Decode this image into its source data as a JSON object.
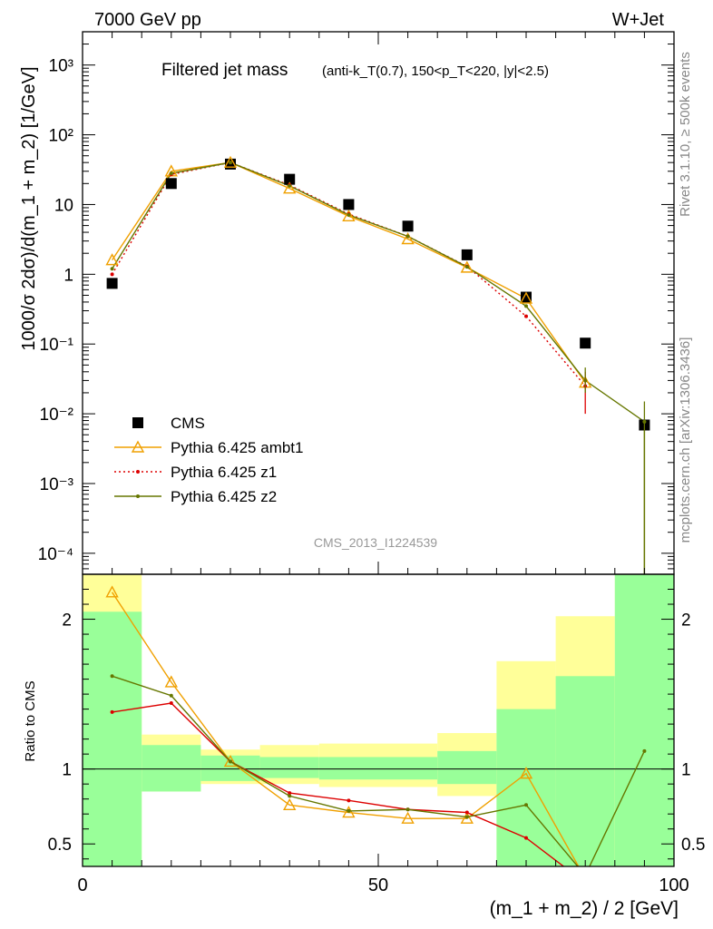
{
  "header": {
    "left": "7000 GeV pp",
    "right": "W+Jet"
  },
  "side_labels": {
    "rivet": "Rivet 3.1.10, ≥ 500k events",
    "mcplots": "mcplots.cern.ch [arXiv:1306.3436]"
  },
  "analysis_id": "CMS_2013_I1224539",
  "chart_data": [
    {
      "type": "line",
      "title": "Filtered jet mass",
      "subtitle": "(anti-k_T(0.7), 150<p_T<220, |y|<2.5)",
      "xlabel": "(m_1 + m_2) / 2 [GeV]",
      "ylabel": "1000/σ 2dσ)/d(m_1 + m_2) [1/GeV]",
      "yscale": "log",
      "xlim": [
        0,
        100
      ],
      "ylim": [
        5e-05,
        3000
      ],
      "y_tick_labels": [
        "10⁻⁴",
        "10⁻³",
        "10⁻²",
        "10⁻¹",
        "1",
        "10",
        "10²",
        "10³"
      ],
      "legend_position": "bottom-left",
      "x": [
        5,
        15,
        25,
        35,
        45,
        55,
        65,
        75,
        85,
        95
      ],
      "series": [
        {
          "name": "CMS",
          "marker": "square",
          "color": "#000000",
          "values": [
            0.74,
            20,
            38,
            23,
            10,
            4.9,
            1.9,
            0.47,
            0.103,
            0.0069
          ]
        },
        {
          "name": "Pythia 6.425 ambt1",
          "marker": "triangle",
          "color": "#f0a000",
          "values": [
            1.6,
            30,
            40,
            17,
            6.8,
            3.2,
            1.25,
            0.45,
            0.028,
            null
          ]
        },
        {
          "name": "Pythia 6.425 z1",
          "marker": "dot",
          "dash": "dotted",
          "color": "#dd0000",
          "values": [
            1.0,
            27,
            40,
            19,
            7.3,
            3.5,
            1.3,
            0.25,
            0.025,
            null
          ]
        },
        {
          "name": "Pythia 6.425 z2",
          "marker": "dot",
          "color": "#667700",
          "values": [
            1.2,
            28,
            40,
            18.5,
            7.1,
            3.5,
            1.28,
            0.35,
            0.03,
            0.0077
          ]
        }
      ]
    },
    {
      "type": "line",
      "ylabel": "Ratio to CMS",
      "xlabel": "(m_1 + m_2) / 2 [GeV]",
      "xlim": [
        0,
        100
      ],
      "ylim": [
        0.35,
        2.3
      ],
      "x_ticks": [
        0,
        50,
        100
      ],
      "y_ticks": [
        0.5,
        1,
        2
      ],
      "bins": [
        [
          0,
          10
        ],
        [
          10,
          20
        ],
        [
          20,
          30
        ],
        [
          30,
          40
        ],
        [
          40,
          50
        ],
        [
          50,
          60
        ],
        [
          60,
          70
        ],
        [
          70,
          80
        ],
        [
          80,
          90
        ],
        [
          90,
          100
        ]
      ],
      "band_stat": [
        [
          0.35,
          2.05
        ],
        [
          0.85,
          1.16
        ],
        [
          0.92,
          1.09
        ],
        [
          0.94,
          1.08
        ],
        [
          0.93,
          1.08
        ],
        [
          0.93,
          1.08
        ],
        [
          0.9,
          1.12
        ],
        [
          0.35,
          1.4
        ],
        [
          0.35,
          1.62
        ],
        [
          0.35,
          2.3
        ]
      ],
      "band_total": [
        [
          0.35,
          2.3
        ],
        [
          0.85,
          1.23
        ],
        [
          0.9,
          1.13
        ],
        [
          0.9,
          1.16
        ],
        [
          0.88,
          1.17
        ],
        [
          0.88,
          1.17
        ],
        [
          0.82,
          1.24
        ],
        [
          0.35,
          1.72
        ],
        [
          0.35,
          2.02
        ],
        [
          0.35,
          2.3
        ]
      ],
      "series": [
        {
          "name": "Pythia 6.425 ambt1",
          "color": "#f0a000",
          "x": [
            5,
            15,
            25,
            35,
            45,
            55,
            65,
            75,
            85
          ],
          "values": [
            2.18,
            1.58,
            1.05,
            0.76,
            0.71,
            0.67,
            0.67,
            0.97,
            0.27
          ]
        },
        {
          "name": "Pythia 6.425 z1",
          "color": "#dd0000",
          "x": [
            5,
            15,
            25,
            35,
            45,
            55,
            65,
            75,
            85
          ],
          "values": [
            1.38,
            1.44,
            1.05,
            0.84,
            0.79,
            0.73,
            0.71,
            0.54,
            0.24
          ]
        },
        {
          "name": "Pythia 6.425 z2",
          "color": "#667700",
          "x": [
            5,
            15,
            25,
            35,
            45,
            55,
            65,
            75,
            85,
            95
          ],
          "values": [
            1.62,
            1.49,
            1.05,
            0.82,
            0.72,
            0.73,
            0.68,
            0.76,
            0.29,
            1.12
          ]
        }
      ]
    }
  ]
}
